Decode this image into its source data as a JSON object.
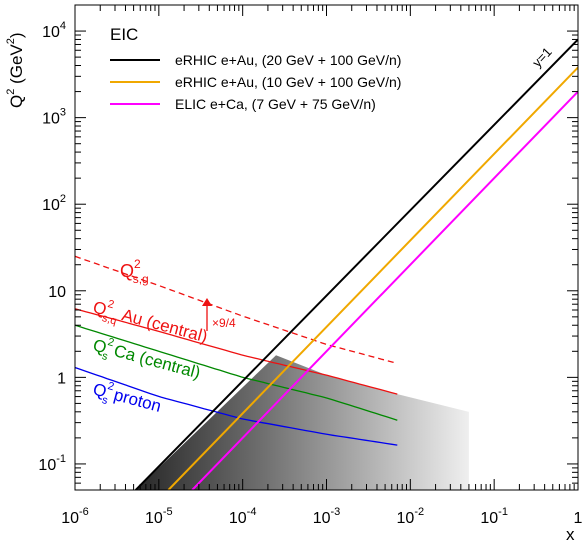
{
  "chart_data": {
    "type": "line",
    "xlabel": "x",
    "ylabel_base": "Q",
    "ylabel_sup": "2",
    "ylabel_unit": " (GeV",
    "ylabel_unit_sup": "2",
    "ylabel_close": ")",
    "xscale": "log",
    "yscale": "log",
    "xlim": [
      1e-06,
      1
    ],
    "ylim": [
      0.05,
      20000
    ],
    "x_ticks": [
      {
        "value": 1e-06,
        "base": "10",
        "exp": "-6"
      },
      {
        "value": 1e-05,
        "base": "10",
        "exp": "-5"
      },
      {
        "value": 0.0001,
        "base": "10",
        "exp": "-4"
      },
      {
        "value": 0.001,
        "base": "10",
        "exp": "-3"
      },
      {
        "value": 0.01,
        "base": "10",
        "exp": "-2"
      },
      {
        "value": 0.1,
        "base": "10",
        "exp": "-1"
      },
      {
        "value": 1,
        "base": "1",
        "exp": ""
      }
    ],
    "y_ticks": [
      {
        "value": 0.1,
        "base": "10",
        "exp": "-1"
      },
      {
        "value": 1,
        "base": "1",
        "exp": ""
      },
      {
        "value": 10,
        "base": "10",
        "exp": ""
      },
      {
        "value": 100,
        "base": "10",
        "exp": "2"
      },
      {
        "value": 1000,
        "base": "10",
        "exp": "3"
      },
      {
        "value": 10000,
        "base": "10",
        "exp": "4"
      }
    ],
    "legend_title": "EIC",
    "legend_position": "top-left",
    "series": [
      {
        "name": "eRHIC e+Au, (20 GeV + 100 GeV/n)",
        "color": "#000000",
        "points": [
          [
            5.3e-06,
            0.05
          ],
          [
            1,
            8000
          ]
        ]
      },
      {
        "name": "eRHIC e+Au, (10 GeV + 100 GeV/n)",
        "color": "#f0a800",
        "points": [
          [
            1.3e-05,
            0.05
          ],
          [
            1,
            3800
          ]
        ]
      },
      {
        "name": "ELIC e+Ca, (7 GeV + 75 GeV/n)",
        "color": "#ff00ff",
        "points": [
          [
            2.5e-05,
            0.05
          ],
          [
            1,
            2000
          ]
        ]
      }
    ],
    "saturation_curves": [
      {
        "color": "#ee1111",
        "dashed": false,
        "points": [
          [
            1e-06,
            6.2
          ],
          [
            1e-05,
            3.4
          ],
          [
            0.0001,
            1.8
          ],
          [
            0.001,
            1.06
          ],
          [
            0.007,
            0.64
          ]
        ]
      },
      {
        "color": "#ee1111",
        "dashed": true,
        "points": [
          [
            1e-06,
            25
          ],
          [
            1e-05,
            11.5
          ],
          [
            0.0001,
            5.1
          ],
          [
            0.001,
            2.4
          ],
          [
            0.007,
            1.45
          ]
        ]
      },
      {
        "color": "#008800",
        "dashed": false,
        "points": [
          [
            1e-06,
            4.0
          ],
          [
            1e-05,
            2.0
          ],
          [
            0.0001,
            1.0
          ],
          [
            0.001,
            0.58
          ],
          [
            0.007,
            0.32
          ]
        ]
      },
      {
        "color": "#0000ee",
        "dashed": false,
        "points": [
          [
            1e-06,
            1.3
          ],
          [
            1e-05,
            0.6
          ],
          [
            0.0001,
            0.33
          ],
          [
            0.001,
            0.22
          ],
          [
            0.007,
            0.165
          ]
        ]
      }
    ],
    "annotations": {
      "y1": "y=1",
      "qsg_main": "Q",
      "qsg_sup": "2",
      "qsg_sub": "s,g",
      "qsq_main": "Q",
      "qsq_sup": "2",
      "qsq_sub": "s,q",
      "qsq_rest": " Au (central)",
      "qs_ca_main": "Q",
      "qs_ca_sup": "2",
      "qs_ca_sub": "s",
      "qs_ca_rest": " Ca (central)",
      "qs_p_main": "Q",
      "qs_p_sup": "2",
      "qs_p_sub": "s",
      "qs_p_rest": " proton",
      "factor": "×9/4"
    }
  }
}
